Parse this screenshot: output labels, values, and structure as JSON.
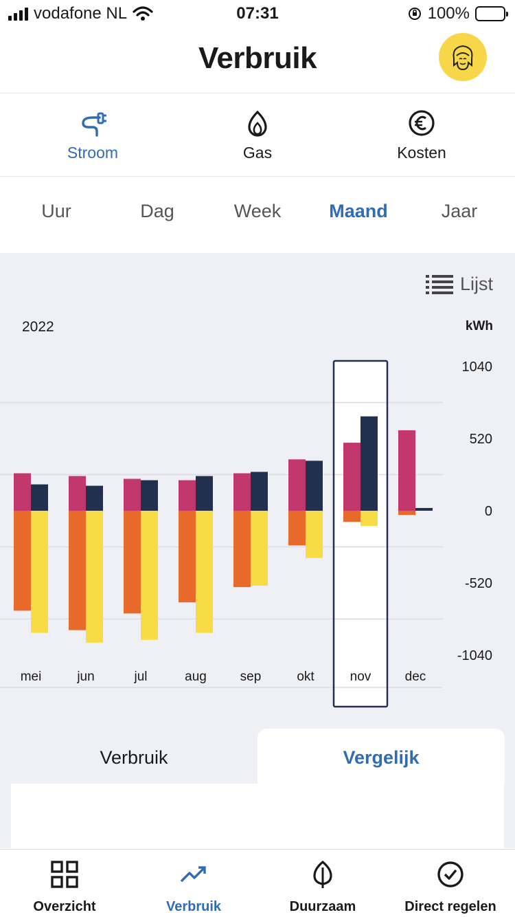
{
  "status_bar": {
    "carrier": "vodafone NL",
    "time": "07:31",
    "battery": "100%"
  },
  "header": {
    "title": "Verbruik"
  },
  "energy_types": [
    {
      "label": "Stroom",
      "icon": "plug-icon",
      "active": true
    },
    {
      "label": "Gas",
      "icon": "flame-icon",
      "active": false
    },
    {
      "label": "Kosten",
      "icon": "euro-icon",
      "active": false
    }
  ],
  "periods": [
    {
      "label": "Uur"
    },
    {
      "label": "Dag"
    },
    {
      "label": "Week"
    },
    {
      "label": "Maand",
      "active": true
    },
    {
      "label": "Jaar"
    }
  ],
  "chart_header": {
    "list_label": "Lijst",
    "year": "2022",
    "unit": "kWh"
  },
  "chart_data": {
    "type": "bar",
    "categories": [
      "mei",
      "jun",
      "jul",
      "aug",
      "sep",
      "okt",
      "nov",
      "dec"
    ],
    "selected": "nov",
    "ylim": [
      -1040,
      1040
    ],
    "yticks": [
      "1040",
      "520",
      "0",
      "-520",
      "-1040"
    ],
    "series": [
      {
        "color": "#c3386c",
        "values": [
          270,
          250,
          230,
          220,
          270,
          370,
          490,
          580
        ]
      },
      {
        "color": "#22304f",
        "values": [
          190,
          180,
          220,
          250,
          280,
          360,
          680,
          20
        ]
      },
      {
        "color": "#e76a2b",
        "values": [
          -720,
          -860,
          -740,
          -660,
          -550,
          -250,
          -80,
          -30
        ]
      },
      {
        "color": "#f8dc45",
        "values": [
          -880,
          -950,
          -930,
          -880,
          -540,
          -340,
          -110,
          0
        ]
      }
    ]
  },
  "subtabs": {
    "left": "Verbruik",
    "right": "Vergelijk"
  },
  "tabbar": [
    {
      "label": "Overzicht",
      "icon": "grid-icon"
    },
    {
      "label": "Verbruik",
      "icon": "trend-up-icon",
      "active": true
    },
    {
      "label": "Duurzaam",
      "icon": "leaf-icon"
    },
    {
      "label": "Direct regelen",
      "icon": "check-circle-icon"
    }
  ],
  "colors": {
    "accent": "#2f6cb3",
    "avatar_bg": "#f7d748",
    "chart_bg": "#eef0f5"
  }
}
